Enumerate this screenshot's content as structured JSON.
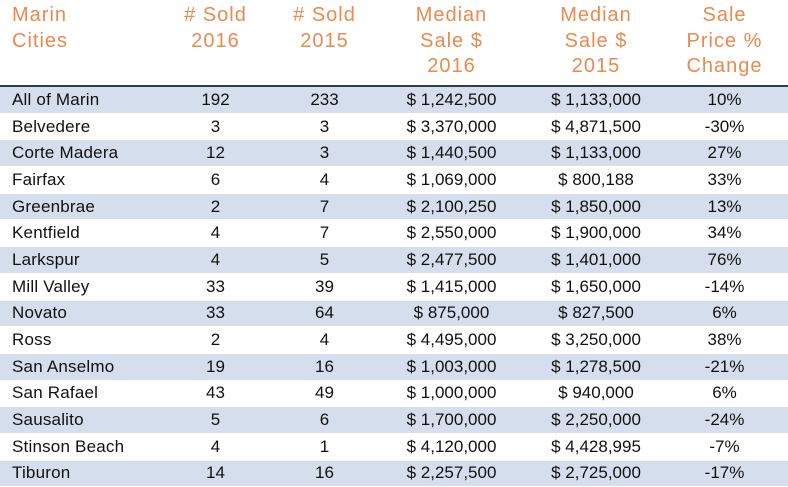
{
  "table": {
    "headers": [
      {
        "lines": [
          "Marin",
          "Cities"
        ]
      },
      {
        "lines": [
          "# Sold",
          "2016"
        ]
      },
      {
        "lines": [
          "# Sold",
          "2015"
        ]
      },
      {
        "lines": [
          "Median",
          "Sale $",
          "2016"
        ]
      },
      {
        "lines": [
          "Median",
          "Sale $",
          "2015"
        ]
      },
      {
        "lines": [
          "Sale",
          "Price %",
          "Change"
        ]
      }
    ],
    "rows": [
      {
        "city": "All of Marin",
        "sold_2016": "192",
        "sold_2015": "233",
        "median_2016": "$ 1,242,500",
        "median_2015": "$ 1,133,000",
        "change": "10%"
      },
      {
        "city": "Belvedere",
        "sold_2016": "3",
        "sold_2015": "3",
        "median_2016": "$ 3,370,000",
        "median_2015": "$ 4,871,500",
        "change": "-30%"
      },
      {
        "city": "Corte Madera",
        "sold_2016": "12",
        "sold_2015": "3",
        "median_2016": "$ 1,440,500",
        "median_2015": "$ 1,133,000",
        "change": "27%"
      },
      {
        "city": "Fairfax",
        "sold_2016": "6",
        "sold_2015": "4",
        "median_2016": "$ 1,069,000",
        "median_2015": "$ 800,188",
        "change": "33%"
      },
      {
        "city": "Greenbrae",
        "sold_2016": "2",
        "sold_2015": "7",
        "median_2016": "$ 2,100,250",
        "median_2015": "$ 1,850,000",
        "change": "13%"
      },
      {
        "city": "Kentfield",
        "sold_2016": "4",
        "sold_2015": "7",
        "median_2016": "$ 2,550,000",
        "median_2015": "$ 1,900,000",
        "change": "34%"
      },
      {
        "city": "Larkspur",
        "sold_2016": "4",
        "sold_2015": "5",
        "median_2016": "$ 2,477,500",
        "median_2015": "$ 1,401,000",
        "change": "76%"
      },
      {
        "city": "Mill Valley",
        "sold_2016": "33",
        "sold_2015": "39",
        "median_2016": "$ 1,415,000",
        "median_2015": "$ 1,650,000",
        "change": "-14%"
      },
      {
        "city": "Novato",
        "sold_2016": "33",
        "sold_2015": "64",
        "median_2016": "$ 875,000",
        "median_2015": "$ 827,500",
        "change": "6%"
      },
      {
        "city": "Ross",
        "sold_2016": "2",
        "sold_2015": "4",
        "median_2016": "$ 4,495,000",
        "median_2015": "$ 3,250,000",
        "change": "38%"
      },
      {
        "city": "San Anselmo",
        "sold_2016": "19",
        "sold_2015": "16",
        "median_2016": "$ 1,003,000",
        "median_2015": "$ 1,278,500",
        "change": "-21%"
      },
      {
        "city": "San Rafael",
        "sold_2016": "43",
        "sold_2015": "49",
        "median_2016": "$ 1,000,000",
        "median_2015": "$ 940,000",
        "change": "6%"
      },
      {
        "city": "Sausalito",
        "sold_2016": "5",
        "sold_2015": "6",
        "median_2016": "$ 1,700,000",
        "median_2015": "$ 2,250,000",
        "change": "-24%"
      },
      {
        "city": "Stinson Beach",
        "sold_2016": "4",
        "sold_2015": "1",
        "median_2016": "$ 4,120,000",
        "median_2015": "$ 4,428,995",
        "change": "-7%"
      },
      {
        "city": "Tiburon",
        "sold_2016": "14",
        "sold_2015": "16",
        "median_2016": "$ 2,257,500",
        "median_2015": "$ 2,725,000",
        "change": "-17%"
      }
    ]
  },
  "colors": {
    "header_text": "#e98a4e",
    "row_stripe": "#d4deec",
    "header_rule": "#2e3b57"
  }
}
